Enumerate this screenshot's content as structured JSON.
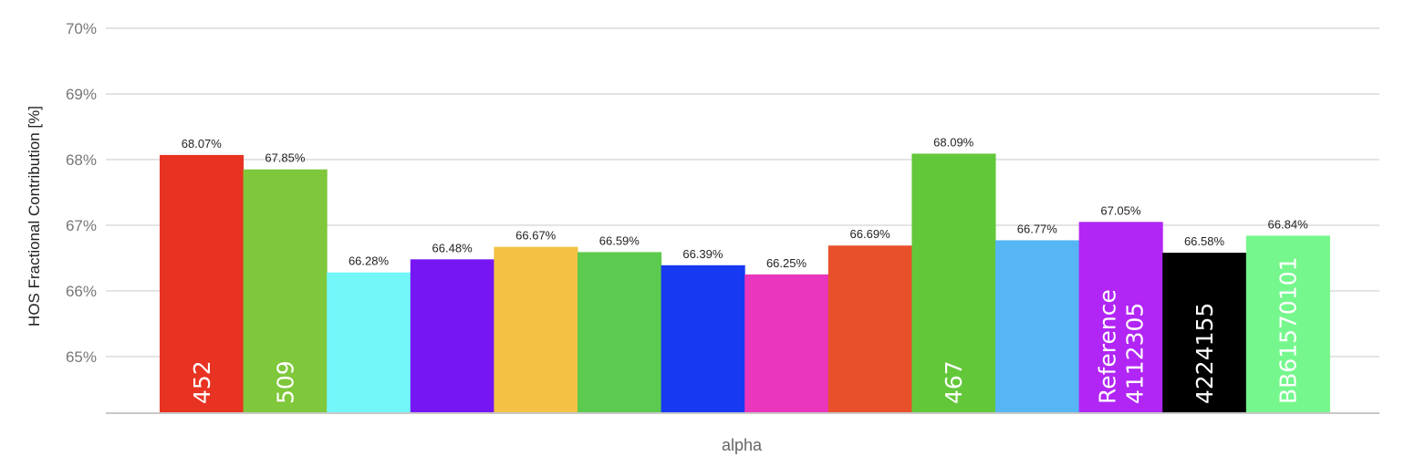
{
  "chart_data": {
    "type": "bar",
    "category": "alpha",
    "ylabel": "HOS Fractional Contribution [%]",
    "ylim": [
      64.15,
      70
    ],
    "yticks": [
      65,
      66,
      67,
      68,
      69,
      70
    ],
    "ytick_labels": [
      "65%",
      "66%",
      "67%",
      "68%",
      "69%",
      "70%"
    ],
    "grid": true,
    "bars": [
      {
        "value": 68.07,
        "label": "68.07%",
        "inbar": "452",
        "color": "#e83323"
      },
      {
        "value": 67.85,
        "label": "67.85%",
        "inbar": "509",
        "color": "#7fc73b"
      },
      {
        "value": 66.28,
        "label": "66.28%",
        "inbar": "",
        "color": "#73f7f9"
      },
      {
        "value": 66.48,
        "label": "66.48%",
        "inbar": "",
        "color": "#7617f3"
      },
      {
        "value": 66.67,
        "label": "66.67%",
        "inbar": "",
        "color": "#f4c144"
      },
      {
        "value": 66.59,
        "label": "66.59%",
        "inbar": "",
        "color": "#5cca4e"
      },
      {
        "value": 66.39,
        "label": "66.39%",
        "inbar": "",
        "color": "#1739f2"
      },
      {
        "value": 66.25,
        "label": "66.25%",
        "inbar": "",
        "color": "#ea35bd"
      },
      {
        "value": 66.69,
        "label": "66.69%",
        "inbar": "",
        "color": "#e8502b"
      },
      {
        "value": 68.09,
        "label": "68.09%",
        "inbar": "467",
        "color": "#63c73a"
      },
      {
        "value": 66.77,
        "label": "66.77%",
        "inbar": "",
        "color": "#56b6f4"
      },
      {
        "value": 67.05,
        "label": "67.05%",
        "inbar": "Reference\n4112305",
        "color": "#b126f4"
      },
      {
        "value": 66.58,
        "label": "66.58%",
        "inbar": "4224155",
        "color": "#000000"
      },
      {
        "value": 66.84,
        "label": "66.84%",
        "inbar": "BB61570101",
        "color": "#76f78d"
      }
    ]
  },
  "colors": {
    "grid": "#e3e3e3",
    "baseline": "#c8c8c8",
    "inbar_text": "#ffffff"
  }
}
